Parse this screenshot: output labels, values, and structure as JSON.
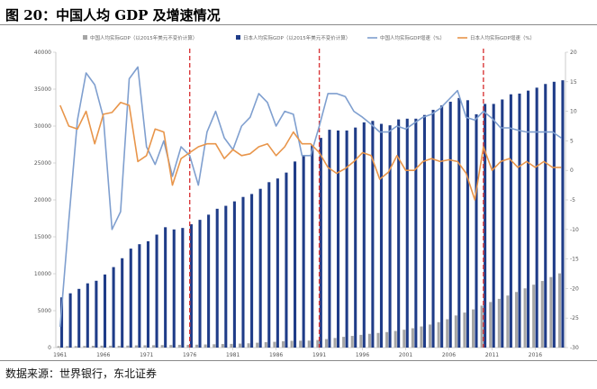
{
  "figure": {
    "title": "图  20：中国人均 GDP 及增速情况",
    "source": "数据来源：世界银行，东北证券"
  },
  "chart_data": {
    "type": "bar+line",
    "years": [
      1961,
      1962,
      1963,
      1964,
      1965,
      1966,
      1967,
      1968,
      1969,
      1970,
      1971,
      1972,
      1973,
      1974,
      1975,
      1976,
      1977,
      1978,
      1979,
      1980,
      1981,
      1982,
      1983,
      1984,
      1985,
      1986,
      1987,
      1988,
      1989,
      1990,
      1991,
      1992,
      1993,
      1994,
      1995,
      1996,
      1997,
      1998,
      1999,
      2000,
      2001,
      2002,
      2003,
      2004,
      2005,
      2006,
      2007,
      2008,
      2009,
      2010,
      2011,
      2012,
      2013,
      2014,
      2015,
      2016,
      2017,
      2018,
      2019
    ],
    "x_tick_labels": [
      "1961",
      "1966",
      "1971",
      "1976",
      "1981",
      "1986",
      "1991",
      "1996",
      "2001",
      "2006",
      "2011",
      "2016"
    ],
    "left_axis": {
      "ylim": [
        0,
        40000
      ],
      "ticks": [
        "0",
        "5000",
        "10000",
        "15000",
        "20000",
        "25000",
        "30000",
        "35000",
        "40000"
      ]
    },
    "right_axis": {
      "ylim": [
        -30,
        20
      ],
      "ticks": [
        "-30",
        "-25",
        "-20",
        "-15",
        "-10",
        "-5",
        "0",
        "5",
        "10",
        "15",
        "20"
      ]
    },
    "vlines": [
      1976,
      1991,
      2010
    ],
    "colors": {
      "china_bar": "#a5a5a5",
      "japan_bar": "#1f3c88",
      "china_line": "#7f9fcf",
      "japan_line": "#e8954a",
      "vline": "#d9393b"
    },
    "series": [
      {
        "name": "中国人均实际GDP（以2015年美元不变价计算）",
        "kind": "bar",
        "axis": "left",
        "values": [
          200,
          190,
          200,
          220,
          240,
          260,
          250,
          240,
          270,
          300,
          310,
          320,
          340,
          350,
          370,
          360,
          390,
          420,
          450,
          480,
          500,
          540,
          580,
          660,
          730,
          780,
          850,
          920,
          930,
          950,
          1020,
          1150,
          1300,
          1450,
          1580,
          1720,
          1860,
          1980,
          2100,
          2250,
          2420,
          2620,
          2860,
          3120,
          3440,
          3840,
          4350,
          4740,
          5170,
          5680,
          6170,
          6600,
          7050,
          7530,
          8020,
          8520,
          9020,
          9550,
          10050
        ]
      },
      {
        "name": "日本人均实际GDP（以2015年美元不变价计算）",
        "kind": "bar",
        "axis": "left",
        "values": [
          6800,
          7350,
          7950,
          8700,
          9050,
          9900,
          10900,
          12100,
          13400,
          14000,
          14400,
          15300,
          16300,
          16000,
          16200,
          16700,
          17300,
          18000,
          18800,
          19200,
          19800,
          20400,
          20800,
          21500,
          22400,
          22900,
          23700,
          25200,
          26100,
          27400,
          28400,
          29500,
          29400,
          29400,
          29800,
          30500,
          30700,
          30300,
          30100,
          30900,
          31000,
          31000,
          31500,
          32200,
          32800,
          33300,
          33800,
          33500,
          31600,
          33000,
          33000,
          33600,
          34300,
          34400,
          34800,
          35200,
          35700,
          36000,
          36200
        ]
      },
      {
        "name": "中国人均实际GDP增速（%）",
        "kind": "line",
        "axis": "right",
        "values": [
          -26.5,
          -8.5,
          8.5,
          16.5,
          14.5,
          9,
          -10,
          -7,
          15.5,
          17.5,
          4,
          1,
          5,
          -1,
          4,
          2.5,
          -2.5,
          6.5,
          10,
          5.5,
          3.5,
          7.5,
          9,
          13,
          11.5,
          7.5,
          10,
          9.5,
          2.5,
          2.5,
          7.5,
          13,
          13,
          12.5,
          10,
          9,
          7.8,
          6.5,
          6.5,
          7.5,
          7,
          8,
          9,
          9.5,
          10.5,
          12,
          13.5,
          9,
          8.5,
          10,
          8.8,
          7.2,
          7.2,
          6.8,
          6.5,
          6.5,
          6.5,
          6.5,
          5.5
        ]
      },
      {
        "name": "日本人均实际GDP增速（%）",
        "kind": "line",
        "axis": "right",
        "values": [
          11,
          7.5,
          7,
          10,
          4.5,
          9.5,
          9.8,
          11.5,
          11,
          1.5,
          2.5,
          7,
          6.5,
          -2.5,
          2,
          3,
          4,
          4.5,
          4.5,
          2,
          3.5,
          2.5,
          2.8,
          4,
          4.5,
          2.5,
          4,
          6.5,
          4.5,
          4.5,
          3,
          0.5,
          -0.5,
          0.3,
          1.5,
          3,
          2.5,
          -1.5,
          -0.3,
          2.5,
          0,
          0,
          1.5,
          2,
          1.5,
          1.8,
          1.5,
          -0.5,
          -5,
          4,
          0,
          1.5,
          2,
          0.5,
          1.5,
          0.5,
          1.5,
          0.5,
          0.5
        ]
      }
    ]
  }
}
